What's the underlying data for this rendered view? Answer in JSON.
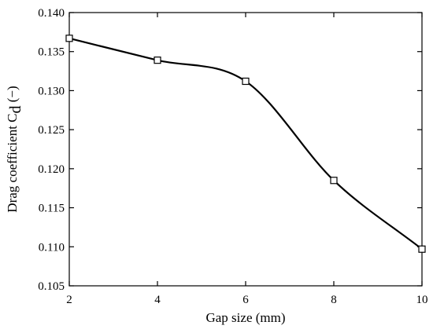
{
  "chart_data": {
    "type": "line",
    "title": "",
    "xlabel": "Gap size (mm)",
    "ylabel": "Drag coefficient C",
    "ylabel_subscript": "d",
    "ylabel_unit": " (−)",
    "xlim": [
      2,
      10
    ],
    "ylim": [
      0.105,
      0.14
    ],
    "x_ticks": [
      "2",
      "4",
      "6",
      "8",
      "10"
    ],
    "y_ticks": [
      "0.105",
      "0.110",
      "0.115",
      "0.120",
      "0.125",
      "0.130",
      "0.135",
      "0.140"
    ],
    "grid": false,
    "legend": "none",
    "series": [
      {
        "x": [
          2,
          4,
          6,
          8,
          10
        ],
        "y": [
          0.1367,
          0.1339,
          0.1312,
          0.1185,
          0.1097
        ],
        "color": "#000000",
        "marker": "open-square",
        "smooth": true
      }
    ]
  }
}
